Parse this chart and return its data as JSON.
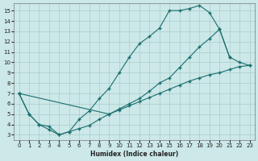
{
  "xlabel": "Humidex (Indice chaleur)",
  "background_color": "#cce8e8",
  "grid_color": "#aacccc",
  "line_color": "#1a6e6e",
  "xlim": [
    -0.5,
    23.5
  ],
  "ylim": [
    2.5,
    15.7
  ],
  "xticks": [
    0,
    1,
    2,
    3,
    4,
    5,
    6,
    7,
    8,
    9,
    10,
    11,
    12,
    13,
    14,
    15,
    16,
    17,
    18,
    19,
    20,
    21,
    22,
    23
  ],
  "yticks": [
    3,
    4,
    5,
    6,
    7,
    8,
    9,
    10,
    11,
    12,
    13,
    14,
    15
  ],
  "line1_x": [
    0,
    1,
    2,
    3,
    4,
    5,
    6,
    7,
    8,
    9,
    10,
    11,
    12,
    13,
    14,
    15,
    16,
    17,
    18,
    19,
    20,
    21,
    22,
    23
  ],
  "line1_y": [
    7.0,
    5.0,
    4.0,
    3.5,
    3.0,
    3.3,
    3.6,
    3.9,
    4.5,
    5.0,
    5.4,
    5.8,
    6.2,
    6.6,
    7.0,
    7.4,
    7.8,
    8.2,
    8.5,
    8.8,
    9.0,
    9.3,
    9.6,
    9.7
  ],
  "line2_x": [
    0,
    1,
    2,
    3,
    4,
    5,
    6,
    7,
    8,
    9,
    10,
    11,
    12,
    13,
    14,
    15,
    16,
    17,
    18,
    19,
    20,
    21
  ],
  "line2_y": [
    7.0,
    5.0,
    4.0,
    3.8,
    3.0,
    3.3,
    4.5,
    5.3,
    6.5,
    7.5,
    9.0,
    10.5,
    11.8,
    12.5,
    13.3,
    15.0,
    15.0,
    15.2,
    15.5,
    14.8,
    13.2,
    10.5
  ],
  "line3_x": [
    0,
    9,
    10,
    11,
    12,
    13,
    14,
    15,
    16,
    17,
    18,
    19,
    20,
    21,
    22,
    23
  ],
  "line3_y": [
    7.0,
    5.0,
    5.5,
    6.0,
    6.5,
    7.2,
    8.0,
    8.5,
    9.5,
    10.5,
    11.5,
    12.3,
    13.2,
    10.5,
    10.0,
    9.7
  ]
}
